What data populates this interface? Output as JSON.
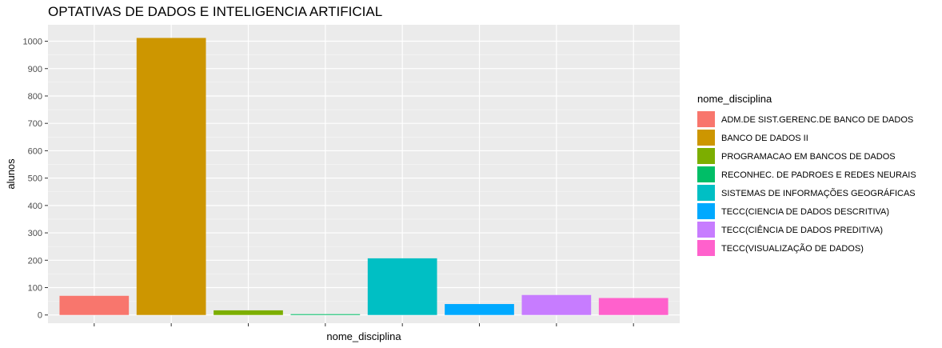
{
  "chart_data": {
    "type": "bar",
    "title": "OPTATIVAS DE DADOS E INTELIGENCIA ARTIFICIAL",
    "xlabel": "nome_disciplina",
    "ylabel": "alunos",
    "ylim": [
      -30,
      1060
    ],
    "yticks": [
      0,
      100,
      200,
      300,
      400,
      500,
      600,
      700,
      800,
      900,
      1000
    ],
    "grid": true,
    "legend": {
      "title": "nome_disciplina",
      "position": "right"
    },
    "categories": [
      "ADM.DE SIST.GERENC.DE BANCO DE DADOS",
      "BANCO DE DADOS II",
      "PROGRAMACAO EM BANCOS DE DADOS",
      "RECONHEC. DE PADROES E REDES NEURAIS",
      "SISTEMAS DE INFORMAÇÕES GEOGRÁFICAS",
      "TECC(CIENCIA DE DADOS DESCRITIVA)",
      "TECC(CIÊNCIA DE DADOS PREDITIVA)",
      "TECC(VISUALIZAÇÃO DE DADOS)"
    ],
    "values": [
      70,
      1012,
      17,
      3,
      207,
      40,
      73,
      62
    ],
    "colors": [
      "#F8766D",
      "#CD9600",
      "#7CAE00",
      "#00BE67",
      "#00BFC4",
      "#00A9FF",
      "#C77CFF",
      "#FF61CC"
    ]
  }
}
